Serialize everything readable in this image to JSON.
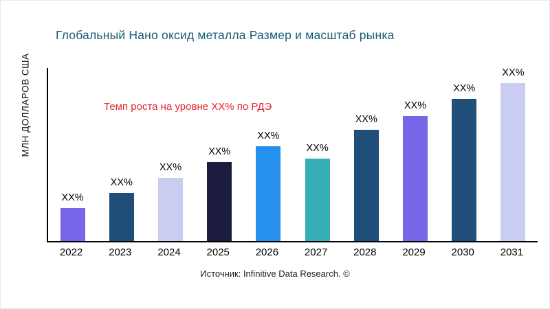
{
  "page": {
    "title": "Глобальный Нано оксид металла Размер и масштаб рынка",
    "y_axis_label": "МЛН ДОЛЛАРОВ США",
    "annotation": "Темп роста на уровне XX% по РДЭ",
    "source": "Источник: Infinitive Data Research. ©"
  },
  "chart_data": {
    "type": "bar",
    "title": "Глобальный Нано оксид металла Размер и масштаб рынка",
    "xlabel": "",
    "ylabel": "МЛН ДОЛЛАРОВ США",
    "categories": [
      "2022",
      "2023",
      "2024",
      "2025",
      "2026",
      "2027",
      "2028",
      "2029",
      "2030",
      "2031"
    ],
    "bar_labels": [
      "XX%",
      "XX%",
      "XX%",
      "XX%",
      "XX%",
      "XX%",
      "XX%",
      "XX%",
      "XX%",
      "XX%"
    ],
    "values_relative": [
      48,
      70,
      92,
      115,
      138,
      120,
      162,
      182,
      207,
      230
    ],
    "values_note": "Axis has no numeric ticks; bar values shown only as XX% placeholders; values_relative are bar heights in px estimated from the image",
    "bar_colors": [
      "#7666e8",
      "#1f4e79",
      "#c9cdf2",
      "#1c1c3f",
      "#2590ee",
      "#35afb5",
      "#1f4e79",
      "#7666e8",
      "#1f4e79",
      "#c9cdf2"
    ],
    "annotation": "Темп роста на уровне XX% по РДЭ",
    "annotation_color": "#e5242c",
    "title_color": "#155e75",
    "axis_color": "#000000",
    "legend": "none",
    "grid": false,
    "source": "Источник: Infinitive Data Research. ©"
  }
}
